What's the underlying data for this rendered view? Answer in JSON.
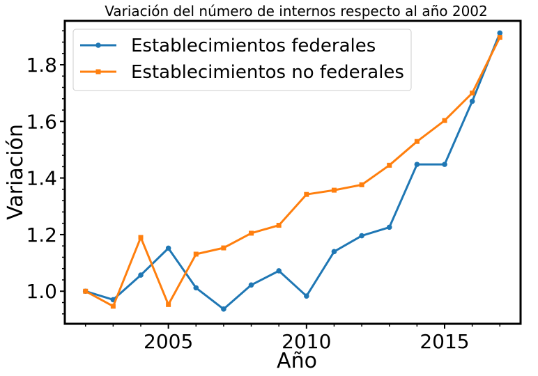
{
  "chart_data": {
    "type": "line",
    "title": "Variación del número de internos respecto al año 2002",
    "xlabel": "Año",
    "ylabel": "Variación",
    "x": [
      2002,
      2003,
      2004,
      2005,
      2006,
      2007,
      2008,
      2009,
      2010,
      2011,
      2012,
      2013,
      2014,
      2015,
      2016,
      2017
    ],
    "xticks": [
      2005,
      2010,
      2015
    ],
    "yticks": [
      1.0,
      1.2,
      1.4,
      1.6,
      1.8
    ],
    "xlim": [
      2001.25,
      2017.75
    ],
    "ylim": [
      0.885,
      1.955
    ],
    "grid": false,
    "legend_position": "upper-left",
    "series": [
      {
        "name": "Establecimientos federales",
        "color": "#1f77b4",
        "marker": "circle",
        "values": [
          1.0,
          0.97,
          1.057,
          1.152,
          1.012,
          0.937,
          1.022,
          1.072,
          0.983,
          1.14,
          1.196,
          1.226,
          1.448,
          1.448,
          1.671,
          1.912
        ]
      },
      {
        "name": "Establecimientos no federales",
        "color": "#ff7f0e",
        "marker": "square",
        "values": [
          1.0,
          0.947,
          1.19,
          0.953,
          1.131,
          1.153,
          1.205,
          1.233,
          1.342,
          1.357,
          1.376,
          1.445,
          1.529,
          1.603,
          1.7,
          1.897
        ]
      }
    ]
  }
}
